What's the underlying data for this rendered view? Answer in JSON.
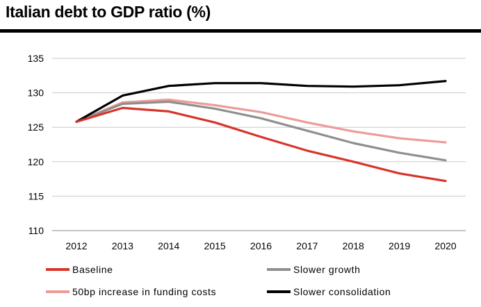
{
  "chart_data": {
    "type": "line",
    "title": "Italian debt to GDP ratio (%)",
    "xlabel": "",
    "ylabel": "",
    "ylim": [
      110,
      135
    ],
    "yticks": [
      110,
      115,
      120,
      125,
      130,
      135
    ],
    "grid": true,
    "legend_position": "bottom",
    "categories": [
      "2012",
      "2013",
      "2014",
      "2015",
      "2016",
      "2017",
      "2018",
      "2019",
      "2020"
    ],
    "series": [
      {
        "name": "Baseline",
        "color": "#d7342a",
        "values": [
          125.8,
          127.8,
          127.3,
          125.7,
          123.6,
          121.6,
          120.0,
          118.3,
          117.2
        ]
      },
      {
        "name": "Slower growth",
        "color": "#8f8f8f",
        "values": [
          125.8,
          128.4,
          128.7,
          127.7,
          126.3,
          124.5,
          122.7,
          121.3,
          120.2
        ]
      },
      {
        "name": "50bp increase in funding costs",
        "color": "#eb9c98",
        "values": [
          125.8,
          128.6,
          129.0,
          128.2,
          127.2,
          125.7,
          124.4,
          123.4,
          122.8
        ]
      },
      {
        "name": "Slower consolidation",
        "color": "#000000",
        "values": [
          125.8,
          129.6,
          131.0,
          131.4,
          131.4,
          131.0,
          130.9,
          131.1,
          131.7
        ]
      }
    ]
  }
}
